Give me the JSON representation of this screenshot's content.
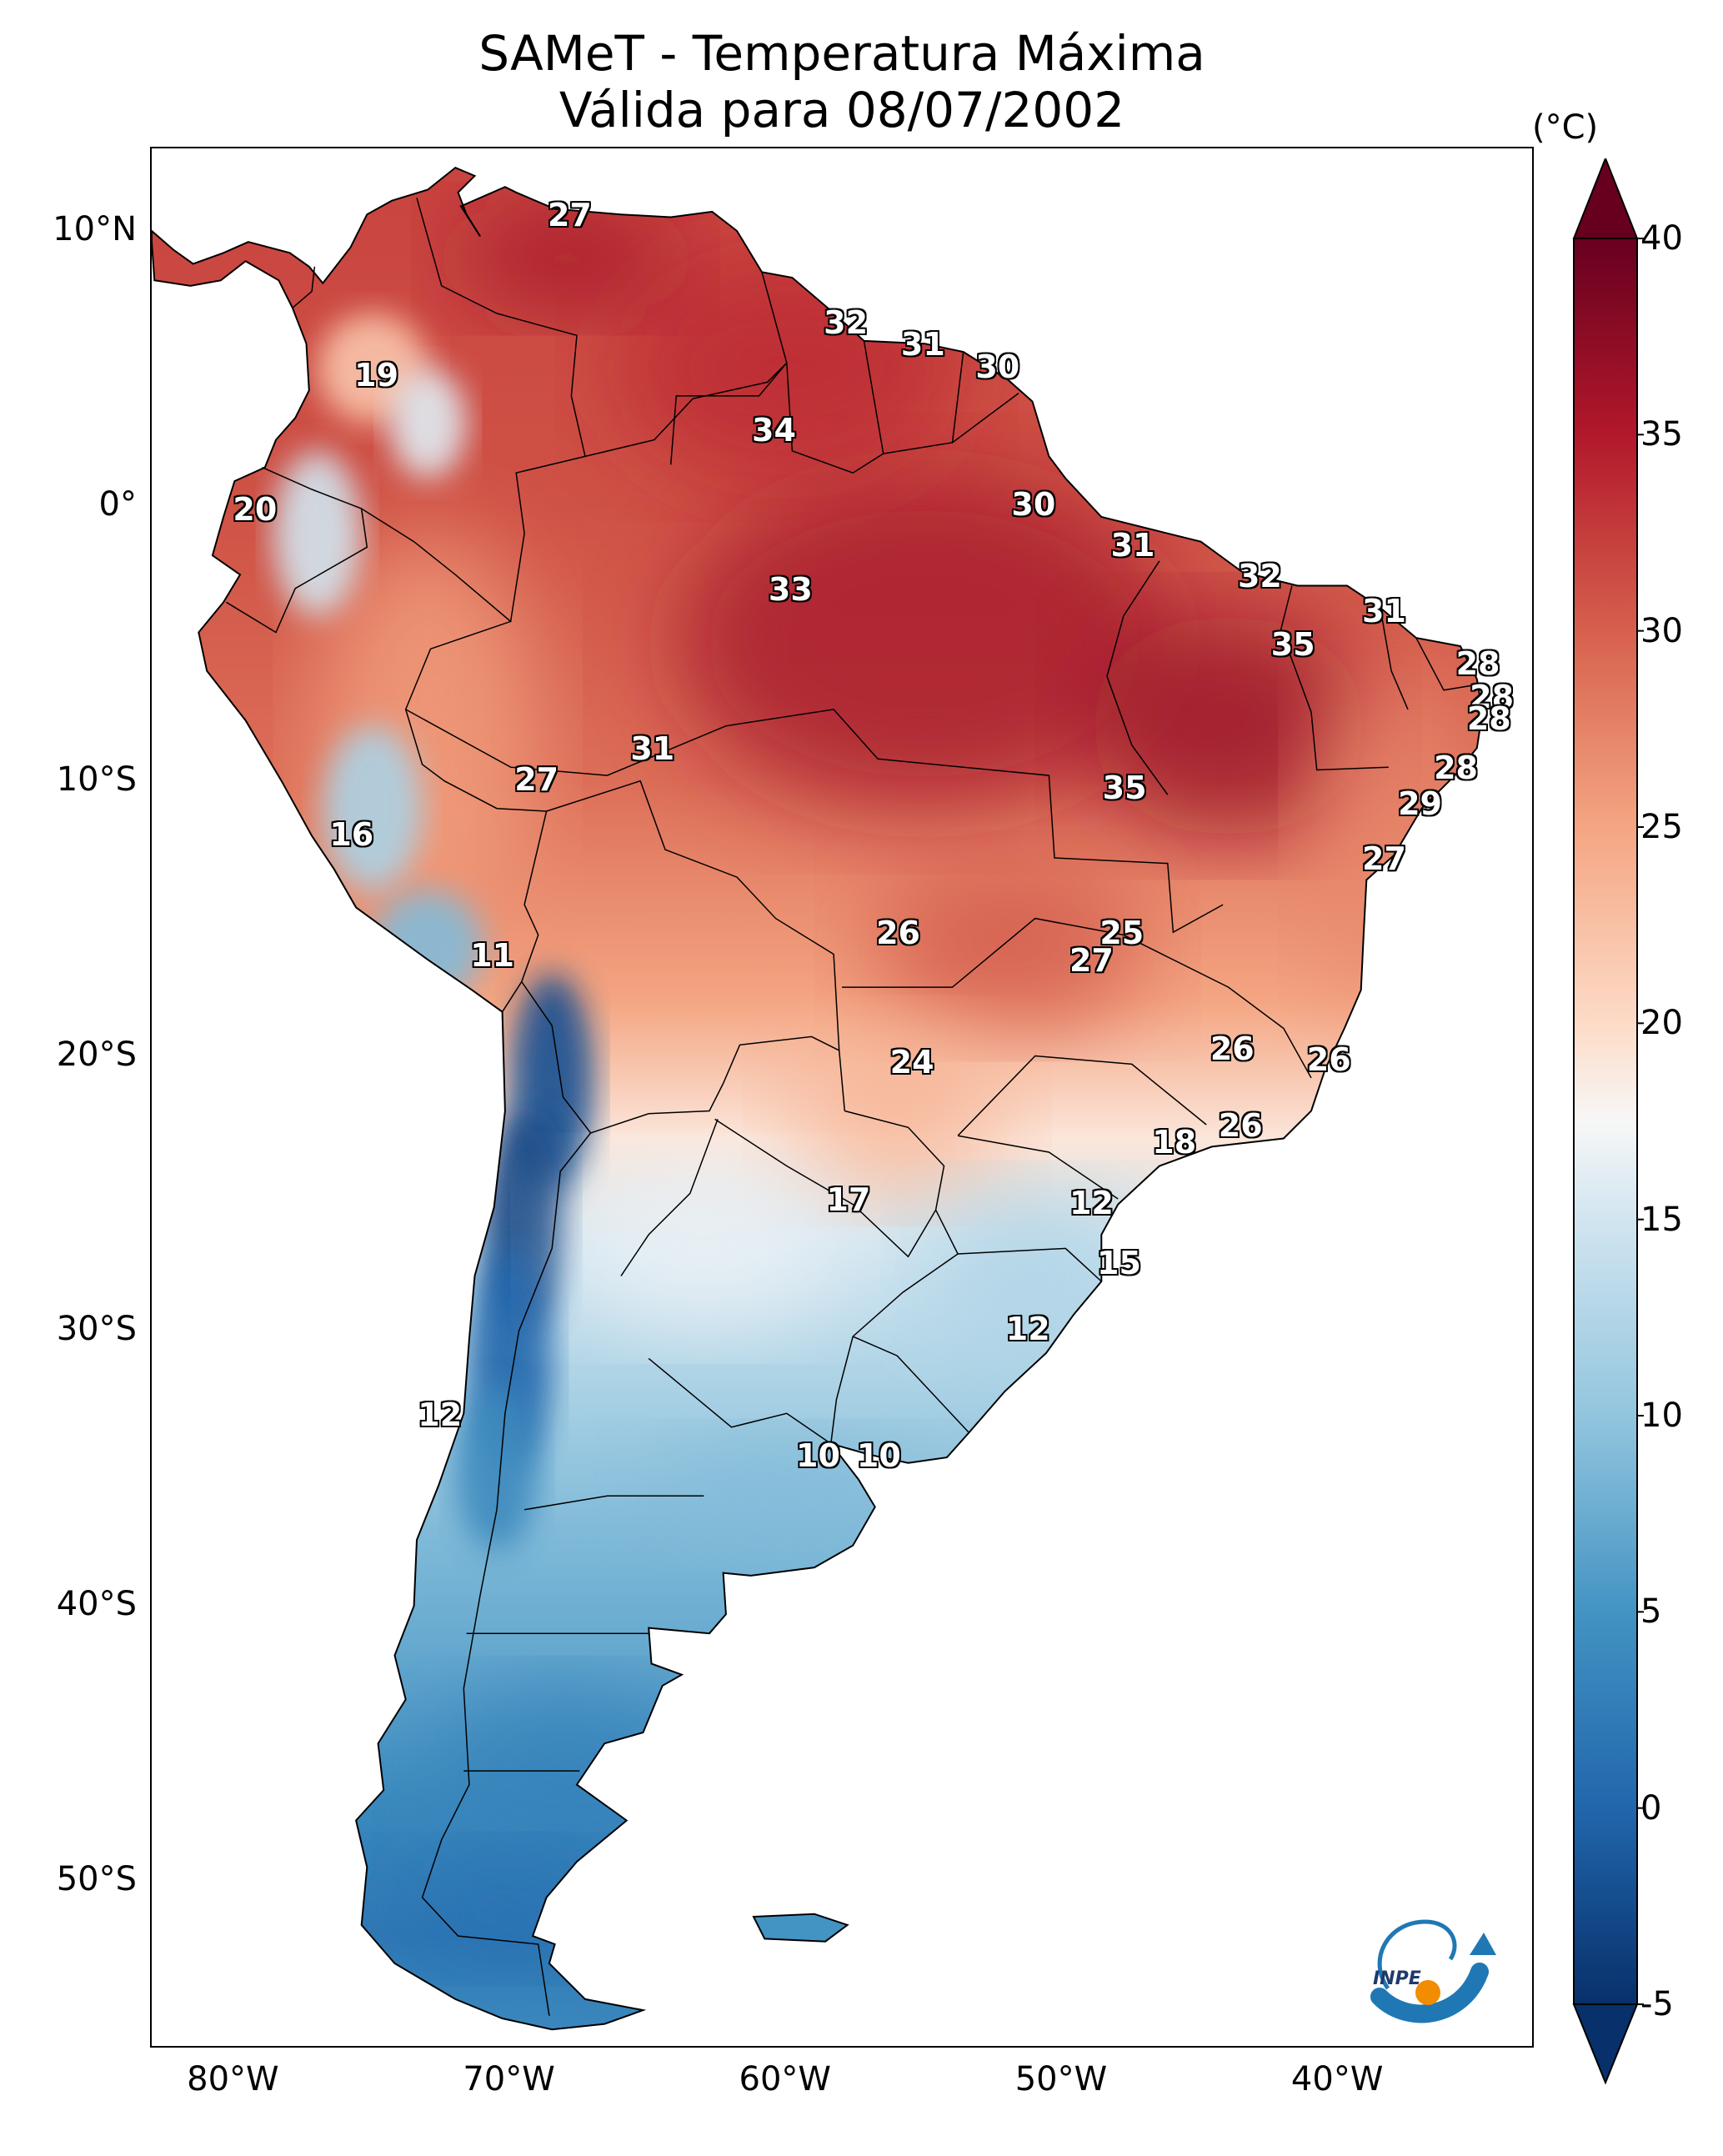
{
  "title": {
    "line1": "SAMeT - Temperatura Máxima",
    "line2": "Válida para 08/07/2002"
  },
  "map": {
    "lon_range": [
      -83,
      -33
    ],
    "lat_range": [
      -56,
      13
    ],
    "lat_ticks": [
      {
        "lat": 10,
        "label": "10°N"
      },
      {
        "lat": 0,
        "label": "0°"
      },
      {
        "lat": -10,
        "label": "10°S"
      },
      {
        "lat": -20,
        "label": "20°S"
      },
      {
        "lat": -30,
        "label": "30°S"
      },
      {
        "lat": -40,
        "label": "40°S"
      },
      {
        "lat": -50,
        "label": "50°S"
      }
    ],
    "lon_ticks": [
      {
        "lon": -80,
        "label": "80°W"
      },
      {
        "lon": -70,
        "label": "70°W"
      },
      {
        "lon": -60,
        "label": "60°W"
      },
      {
        "lon": -50,
        "label": "50°W"
      },
      {
        "lon": -40,
        "label": "40°W"
      }
    ],
    "contour_labels": [
      {
        "lon": -67.8,
        "lat": 10.5,
        "text": "27"
      },
      {
        "lon": -57.8,
        "lat": 6.6,
        "text": "32"
      },
      {
        "lon": -55.0,
        "lat": 5.8,
        "text": "31"
      },
      {
        "lon": -52.3,
        "lat": 5.0,
        "text": "30"
      },
      {
        "lon": -74.8,
        "lat": 4.7,
        "text": "19"
      },
      {
        "lon": -60.4,
        "lat": 2.7,
        "text": "34"
      },
      {
        "lon": -79.2,
        "lat": -0.2,
        "text": "20"
      },
      {
        "lon": -51.0,
        "lat": 0.0,
        "text": "30"
      },
      {
        "lon": -47.4,
        "lat": -1.5,
        "text": "31"
      },
      {
        "lon": -42.8,
        "lat": -2.6,
        "text": "32"
      },
      {
        "lon": -59.8,
        "lat": -3.1,
        "text": "33"
      },
      {
        "lon": -38.3,
        "lat": -3.9,
        "text": "31"
      },
      {
        "lon": -41.6,
        "lat": -5.1,
        "text": "35"
      },
      {
        "lon": -34.9,
        "lat": -5.8,
        "text": "28"
      },
      {
        "lon": -34.4,
        "lat": -7.0,
        "text": "28"
      },
      {
        "lon": -34.5,
        "lat": -7.8,
        "text": "28"
      },
      {
        "lon": -64.8,
        "lat": -8.9,
        "text": "31"
      },
      {
        "lon": -35.7,
        "lat": -9.6,
        "text": "28"
      },
      {
        "lon": -69.0,
        "lat": -10.0,
        "text": "27"
      },
      {
        "lon": -47.7,
        "lat": -10.3,
        "text": "35"
      },
      {
        "lon": -37.0,
        "lat": -10.9,
        "text": "29"
      },
      {
        "lon": -75.7,
        "lat": -12.0,
        "text": "16"
      },
      {
        "lon": -38.3,
        "lat": -12.9,
        "text": "27"
      },
      {
        "lon": -55.9,
        "lat": -15.6,
        "text": "26"
      },
      {
        "lon": -47.8,
        "lat": -15.6,
        "text": "25"
      },
      {
        "lon": -48.9,
        "lat": -16.6,
        "text": "27"
      },
      {
        "lon": -70.6,
        "lat": -16.4,
        "text": "11"
      },
      {
        "lon": -43.8,
        "lat": -19.8,
        "text": "26"
      },
      {
        "lon": -40.3,
        "lat": -20.2,
        "text": "26"
      },
      {
        "lon": -55.4,
        "lat": -20.3,
        "text": "24"
      },
      {
        "lon": -43.5,
        "lat": -22.6,
        "text": "26"
      },
      {
        "lon": -45.9,
        "lat": -23.2,
        "text": "18"
      },
      {
        "lon": -57.7,
        "lat": -25.3,
        "text": "17"
      },
      {
        "lon": -48.9,
        "lat": -25.4,
        "text": "12"
      },
      {
        "lon": -47.9,
        "lat": -27.6,
        "text": "15"
      },
      {
        "lon": -51.2,
        "lat": -30.0,
        "text": "12"
      },
      {
        "lon": -72.5,
        "lat": -33.1,
        "text": "12"
      },
      {
        "lon": -58.8,
        "lat": -34.6,
        "text": "10"
      },
      {
        "lon": -56.6,
        "lat": -34.6,
        "text": "10"
      }
    ]
  },
  "colorbar": {
    "unit_label": "(°C)",
    "min": -5,
    "max": 40,
    "ticks": [
      "40",
      "35",
      "30",
      "25",
      "20",
      "15",
      "10",
      "5",
      "0",
      "-5"
    ],
    "stops": [
      {
        "value": -5,
        "color": "#08306b"
      },
      {
        "value": 0,
        "color": "#2166ac"
      },
      {
        "value": 5,
        "color": "#4393c3"
      },
      {
        "value": 10,
        "color": "#92c5de"
      },
      {
        "value": 15,
        "color": "#d1e5f0"
      },
      {
        "value": 17.5,
        "color": "#f7f7f7"
      },
      {
        "value": 20,
        "color": "#fddbc7"
      },
      {
        "value": 25,
        "color": "#f4a582"
      },
      {
        "value": 30,
        "color": "#d6604d"
      },
      {
        "value": 35,
        "color": "#b2182b"
      },
      {
        "value": 40,
        "color": "#67001f"
      }
    ]
  },
  "logo": {
    "text": "INPE",
    "icon": "inpe-logo-icon"
  }
}
